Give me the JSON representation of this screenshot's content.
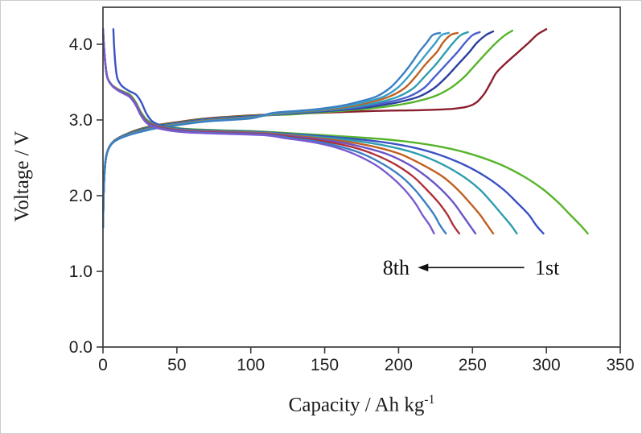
{
  "page": {
    "background": "#ffffff",
    "axis_color": "#3c3c3c",
    "tick_label_color": "#1f1f1f"
  },
  "chart_data": {
    "type": "line",
    "title": "",
    "xlabel_main": "Capacity / Ah kg",
    "xlabel_sup": "-1",
    "ylabel": "Voltage / V",
    "xlim": [
      0,
      350
    ],
    "ylim": [
      0,
      4.489
    ],
    "xticks": [
      0,
      50,
      100,
      150,
      200,
      250,
      300,
      350
    ],
    "yticks": [
      {
        "v": 0,
        "label": "0.0"
      },
      {
        "v": 1,
        "label": "1.0"
      },
      {
        "v": 2,
        "label": "2.0"
      },
      {
        "v": 3,
        "label": "3.0"
      },
      {
        "v": 4,
        "label": "4.0"
      }
    ],
    "grid": false,
    "legend": "none",
    "annotation": {
      "left_label": "8th",
      "right_label": "1st",
      "arrow_x_from": 285,
      "arrow_x_to": 213,
      "y": 1.05
    },
    "discharge_head": [
      [
        0,
        4.2
      ],
      [
        0.5,
        4.02
      ],
      [
        1.5,
        3.76
      ],
      [
        3,
        3.56
      ],
      [
        6,
        3.46
      ],
      [
        10,
        3.4
      ],
      [
        14,
        3.36
      ],
      [
        18,
        3.32
      ],
      [
        22,
        3.22
      ],
      [
        26,
        3.07
      ],
      [
        31,
        2.96
      ],
      [
        40,
        2.9
      ],
      [
        55,
        2.86
      ],
      [
        80,
        2.84
      ],
      [
        110,
        2.82
      ]
    ],
    "charge_head": [
      [
        0,
        1.58
      ],
      [
        0.4,
        1.98
      ],
      [
        1,
        2.28
      ],
      [
        2,
        2.5
      ],
      [
        4,
        2.63
      ],
      [
        7,
        2.71
      ],
      [
        11,
        2.76
      ],
      [
        17,
        2.81
      ],
      [
        25,
        2.86
      ],
      [
        36,
        2.91
      ],
      [
        50,
        2.95
      ],
      [
        70,
        3.0
      ],
      [
        100,
        3.04
      ],
      [
        128,
        3.06
      ]
    ],
    "series": [
      {
        "name": "charge-1st",
        "cycle": "1st",
        "role": "charge",
        "color": "#8a1f2d",
        "end": 300,
        "head_dv": 0.02,
        "head_dx": 0,
        "tail": [
          [
            155,
            3.1
          ],
          [
            185,
            3.12
          ],
          [
            215,
            3.13
          ],
          [
            238,
            3.15
          ],
          [
            250,
            3.2
          ],
          [
            257,
            3.32
          ],
          [
            262,
            3.48
          ],
          [
            266,
            3.62
          ],
          [
            272,
            3.74
          ],
          [
            280,
            3.88
          ],
          [
            288,
            4.02
          ],
          [
            294,
            4.13
          ],
          [
            300,
            4.2
          ]
        ]
      },
      {
        "name": "charge-2nd",
        "cycle": "2nd",
        "role": "charge",
        "color": "#55b52a",
        "end": 277,
        "head_dv": 0.014,
        "head_dx": 0,
        "tail": [
          [
            139,
            3.09
          ],
          [
            161,
            3.12
          ],
          [
            180,
            3.15
          ],
          [
            197,
            3.19
          ],
          [
            211,
            3.24
          ],
          [
            224,
            3.31
          ],
          [
            235,
            3.42
          ],
          [
            244,
            3.56
          ],
          [
            252,
            3.73
          ],
          [
            260,
            3.9
          ],
          [
            266,
            4.02
          ],
          [
            272,
            4.12
          ],
          [
            277,
            4.18
          ]
        ]
      },
      {
        "name": "charge-3rd",
        "cycle": "3rd",
        "role": "charge",
        "color": "#2b3f9e",
        "end": 264,
        "head_dv": 0.008,
        "head_dx": 0,
        "tail": [
          [
            132,
            3.09
          ],
          [
            153,
            3.12
          ],
          [
            172,
            3.15
          ],
          [
            187,
            3.19
          ],
          [
            201,
            3.24
          ],
          [
            214,
            3.31
          ],
          [
            224,
            3.42
          ],
          [
            232,
            3.56
          ],
          [
            240,
            3.73
          ],
          [
            248,
            3.9
          ],
          [
            253,
            4.02
          ],
          [
            259,
            4.12
          ],
          [
            264,
            4.17
          ]
        ]
      },
      {
        "name": "charge-4th",
        "cycle": "4th",
        "role": "charge",
        "color": "#4a5fd0",
        "end": 255,
        "head_dv": 0.003,
        "head_dx": 0,
        "tail": [
          [
            128,
            3.09
          ],
          [
            148,
            3.12
          ],
          [
            166,
            3.15
          ],
          [
            181,
            3.19
          ],
          [
            194,
            3.24
          ],
          [
            207,
            3.31
          ],
          [
            217,
            3.42
          ],
          [
            224,
            3.56
          ],
          [
            232,
            3.73
          ],
          [
            240,
            3.9
          ],
          [
            245,
            4.02
          ],
          [
            250,
            4.12
          ],
          [
            255,
            4.16
          ]
        ]
      },
      {
        "name": "charge-5th",
        "cycle": "5th",
        "role": "charge",
        "color": "#2e9db0",
        "end": 247,
        "head_dv": -0.003,
        "head_dx": 0,
        "tail": [
          [
            124,
            3.09
          ],
          [
            143,
            3.12
          ],
          [
            161,
            3.15
          ],
          [
            175,
            3.19
          ],
          [
            188,
            3.24
          ],
          [
            200,
            3.31
          ],
          [
            210,
            3.42
          ],
          [
            217,
            3.56
          ],
          [
            225,
            3.73
          ],
          [
            232,
            3.9
          ],
          [
            237,
            4.02
          ],
          [
            242,
            4.12
          ],
          [
            247,
            4.16
          ]
        ]
      },
      {
        "name": "charge-6th",
        "cycle": "6th",
        "role": "charge",
        "color": "#c06020",
        "end": 240,
        "head_dv": -0.008,
        "head_dx": 0,
        "tail": [
          [
            120,
            3.09
          ],
          [
            139,
            3.12
          ],
          [
            156,
            3.15
          ],
          [
            170,
            3.19
          ],
          [
            182,
            3.24
          ],
          [
            194,
            3.31
          ],
          [
            204,
            3.42
          ],
          [
            211,
            3.56
          ],
          [
            218,
            3.73
          ],
          [
            226,
            3.9
          ],
          [
            230,
            4.02
          ],
          [
            235,
            4.12
          ],
          [
            240,
            4.15
          ]
        ]
      },
      {
        "name": "charge-7th",
        "cycle": "7th",
        "role": "charge",
        "color": "#3aa0c8",
        "end": 234,
        "head_dv": -0.014,
        "head_dx": 0,
        "tail": [
          [
            117,
            3.09
          ],
          [
            136,
            3.12
          ],
          [
            152,
            3.15
          ],
          [
            166,
            3.19
          ],
          [
            178,
            3.24
          ],
          [
            190,
            3.31
          ],
          [
            199,
            3.42
          ],
          [
            206,
            3.56
          ],
          [
            213,
            3.73
          ],
          [
            220,
            3.9
          ],
          [
            225,
            4.02
          ],
          [
            229,
            4.12
          ],
          [
            234,
            4.15
          ]
        ]
      },
      {
        "name": "charge-8th",
        "cycle": "8th",
        "role": "charge",
        "color": "#3a7fc2",
        "end": 228,
        "head_dv": -0.02,
        "head_dx": 0,
        "tail": [
          [
            114,
            3.09
          ],
          [
            132,
            3.12
          ],
          [
            148,
            3.15
          ],
          [
            162,
            3.19
          ],
          [
            173,
            3.24
          ],
          [
            185,
            3.31
          ],
          [
            194,
            3.42
          ],
          [
            201,
            3.56
          ],
          [
            208,
            3.73
          ],
          [
            214,
            3.9
          ],
          [
            219,
            4.02
          ],
          [
            223,
            4.12
          ],
          [
            228,
            4.15
          ]
        ]
      },
      {
        "name": "discharge-1st",
        "cycle": "1st",
        "role": "discharge",
        "color": "#55b52a",
        "end": 328,
        "head_dv": 0.024,
        "head_dx": 0,
        "tail": [
          [
            180,
            2.76
          ],
          [
            207,
            2.71
          ],
          [
            230,
            2.64
          ],
          [
            249,
            2.55
          ],
          [
            269,
            2.41
          ],
          [
            285,
            2.25
          ],
          [
            298,
            2.08
          ],
          [
            308,
            1.91
          ],
          [
            316,
            1.75
          ],
          [
            323,
            1.61
          ],
          [
            328,
            1.5
          ]
        ]
      },
      {
        "name": "discharge-2nd",
        "cycle": "2nd",
        "role": "discharge",
        "color": "#3a52c4",
        "end": 298,
        "head_dv": 0.017,
        "head_dx": 7,
        "tail": [
          [
            164,
            2.76
          ],
          [
            188,
            2.71
          ],
          [
            209,
            2.64
          ],
          [
            226,
            2.55
          ],
          [
            244,
            2.41
          ],
          [
            259,
            2.25
          ],
          [
            271,
            2.08
          ],
          [
            280,
            1.91
          ],
          [
            288,
            1.75
          ],
          [
            293,
            1.61
          ],
          [
            298,
            1.5
          ]
        ]
      },
      {
        "name": "discharge-3rd",
        "cycle": "3rd",
        "role": "discharge",
        "color": "#2e9db0",
        "end": 280,
        "head_dv": 0.01,
        "head_dx": 0,
        "tail": [
          [
            154,
            2.76
          ],
          [
            176,
            2.71
          ],
          [
            196,
            2.64
          ],
          [
            213,
            2.55
          ],
          [
            230,
            2.41
          ],
          [
            244,
            2.25
          ],
          [
            255,
            2.08
          ],
          [
            263,
            1.91
          ],
          [
            270,
            1.75
          ],
          [
            276,
            1.61
          ],
          [
            280,
            1.5
          ]
        ]
      },
      {
        "name": "discharge-4th",
        "cycle": "4th",
        "role": "discharge",
        "color": "#c06020",
        "end": 264,
        "head_dv": 0.004,
        "head_dx": 0,
        "tail": [
          [
            145,
            2.76
          ],
          [
            166,
            2.71
          ],
          [
            185,
            2.64
          ],
          [
            201,
            2.55
          ],
          [
            216,
            2.41
          ],
          [
            230,
            2.25
          ],
          [
            240,
            2.08
          ],
          [
            248,
            1.91
          ],
          [
            255,
            1.75
          ],
          [
            260,
            1.61
          ],
          [
            264,
            1.5
          ]
        ]
      },
      {
        "name": "discharge-5th",
        "cycle": "5th",
        "role": "discharge",
        "color": "#6a55c8",
        "end": 252,
        "head_dv": -0.003,
        "head_dx": 0,
        "tail": [
          [
            139,
            2.76
          ],
          [
            159,
            2.71
          ],
          [
            176,
            2.64
          ],
          [
            192,
            2.55
          ],
          [
            207,
            2.41
          ],
          [
            219,
            2.25
          ],
          [
            229,
            2.08
          ],
          [
            237,
            1.91
          ],
          [
            243,
            1.75
          ],
          [
            248,
            1.61
          ],
          [
            252,
            1.5
          ]
        ]
      },
      {
        "name": "discharge-6th",
        "cycle": "6th",
        "role": "discharge",
        "color": "#b03038",
        "end": 241,
        "head_dv": -0.01,
        "head_dx": 0,
        "tail": [
          [
            133,
            2.76
          ],
          [
            152,
            2.71
          ],
          [
            169,
            2.64
          ],
          [
            183,
            2.55
          ],
          [
            198,
            2.41
          ],
          [
            210,
            2.25
          ],
          [
            219,
            2.08
          ],
          [
            227,
            1.91
          ],
          [
            233,
            1.75
          ],
          [
            237,
            1.61
          ],
          [
            241,
            1.5
          ]
        ]
      },
      {
        "name": "discharge-7th",
        "cycle": "7th",
        "role": "discharge",
        "color": "#3a7fc2",
        "end": 232,
        "head_dv": -0.016,
        "head_dx": 0,
        "tail": [
          [
            128,
            2.76
          ],
          [
            146,
            2.71
          ],
          [
            162,
            2.64
          ],
          [
            176,
            2.55
          ],
          [
            190,
            2.41
          ],
          [
            202,
            2.25
          ],
          [
            211,
            2.08
          ],
          [
            218,
            1.91
          ],
          [
            224,
            1.75
          ],
          [
            228,
            1.61
          ],
          [
            232,
            1.5
          ]
        ]
      },
      {
        "name": "discharge-8th",
        "cycle": "8th",
        "role": "discharge",
        "color": "#7a5ad0",
        "end": 224,
        "head_dv": -0.022,
        "head_dx": 0,
        "tail": [
          [
            123,
            2.76
          ],
          [
            141,
            2.71
          ],
          [
            157,
            2.64
          ],
          [
            170,
            2.55
          ],
          [
            184,
            2.41
          ],
          [
            195,
            2.25
          ],
          [
            204,
            2.08
          ],
          [
            211,
            1.91
          ],
          [
            216,
            1.75
          ],
          [
            221,
            1.61
          ],
          [
            224,
            1.5
          ]
        ]
      }
    ]
  }
}
